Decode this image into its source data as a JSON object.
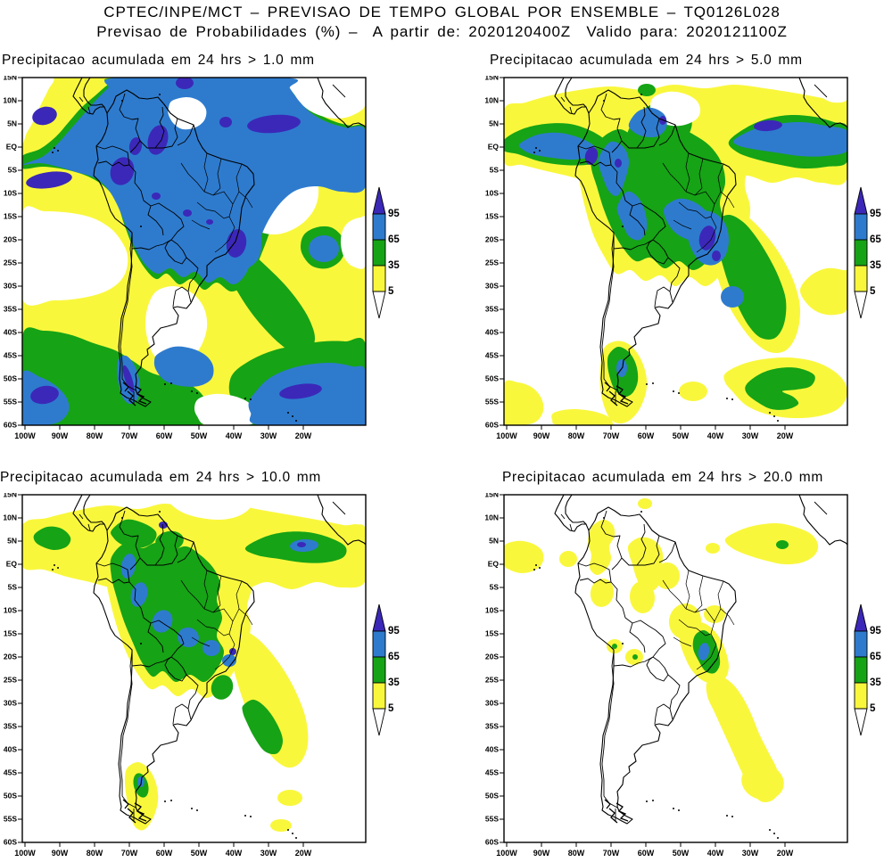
{
  "header": {
    "line1": "CPTEC/INPE/MCT – PREVISAO DE TEMPO GLOBAL POR ENSEMBLE – TQ0126L028",
    "line2": "Previsao de Probabilidades (%) –  A partir de: 2020120400Z  Valido para: 2020121100Z"
  },
  "panels": [
    {
      "title": "Precipitacao acumulada em 24 hrs > 1.0 mm",
      "threshold_mm": "1.0"
    },
    {
      "title": "Precipitacao acumulada em 24 hrs > 5.0 mm",
      "threshold_mm": "5.0"
    },
    {
      "title": "Precipitacao acumulada em 24 hrs > 10.0 mm",
      "threshold_mm": "10.0"
    },
    {
      "title": "Precipitacao acumulada em 24 hrs > 20.0 mm",
      "threshold_mm": "20.0"
    }
  ],
  "axes": {
    "lat_labels": [
      "15N",
      "10N",
      "5N",
      "EQ",
      "5S",
      "10S",
      "15S",
      "20S",
      "25S",
      "30S",
      "35S",
      "40S",
      "45S",
      "50S",
      "55S",
      "60S"
    ],
    "lon_labels": [
      "100W",
      "90W",
      "80W",
      "70W",
      "60W",
      "50W",
      "40W",
      "30W",
      "20W"
    ]
  },
  "legend": {
    "labels": [
      "95",
      "65",
      "35",
      "5"
    ],
    "colors": {
      "purple": "#3B28B8",
      "blue": "#2E7BCE",
      "green": "#16A316",
      "yellow": "#F9F73C",
      "white": "#FFFFFF"
    }
  },
  "map_info": {
    "variable": "Previsao de Probabilidades (%) de precipitacao acumulada em 24 hrs",
    "levels_percent": [
      5,
      35,
      65,
      95
    ],
    "thresholds_mm": [
      1.0,
      5.0,
      10.0,
      20.0
    ],
    "model": "TQ0126L028",
    "init": "2020120400Z",
    "valid": "2020121100Z"
  }
}
